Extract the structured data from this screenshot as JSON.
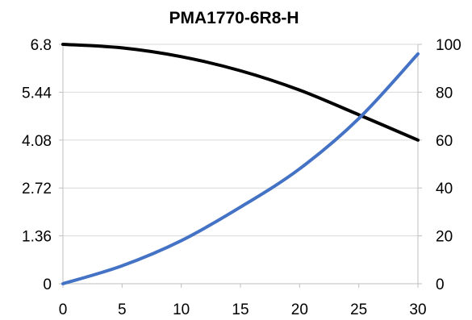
{
  "chart_data": {
    "type": "line",
    "title": "PMA1770-6R8-H",
    "xlabel": "",
    "ylabel": "",
    "y2label": "",
    "grid": true,
    "legend": "none",
    "xlim": [
      0,
      30
    ],
    "ylim": [
      0,
      6.8
    ],
    "y2lim": [
      0,
      100
    ],
    "xticks": [
      "0",
      "5",
      "10",
      "15",
      "20",
      "25",
      "30"
    ],
    "yticks": [
      "0",
      "1.36",
      "2.72",
      "4.08",
      "5.44",
      "6.8"
    ],
    "y2ticks": [
      "0",
      "20",
      "40",
      "60",
      "80",
      "100"
    ],
    "series": [
      {
        "axis": "left",
        "color": "#000000",
        "x": [
          0,
          5,
          10,
          15,
          20,
          25,
          30
        ],
        "values": [
          6.8,
          6.7,
          6.45,
          6.05,
          5.5,
          4.8,
          4.08
        ]
      },
      {
        "axis": "right",
        "color": "#4472c4",
        "x": [
          0,
          5,
          10,
          15,
          20,
          25,
          30
        ],
        "values": [
          0,
          7.5,
          18,
          32,
          48,
          69,
          96
        ]
      }
    ]
  }
}
